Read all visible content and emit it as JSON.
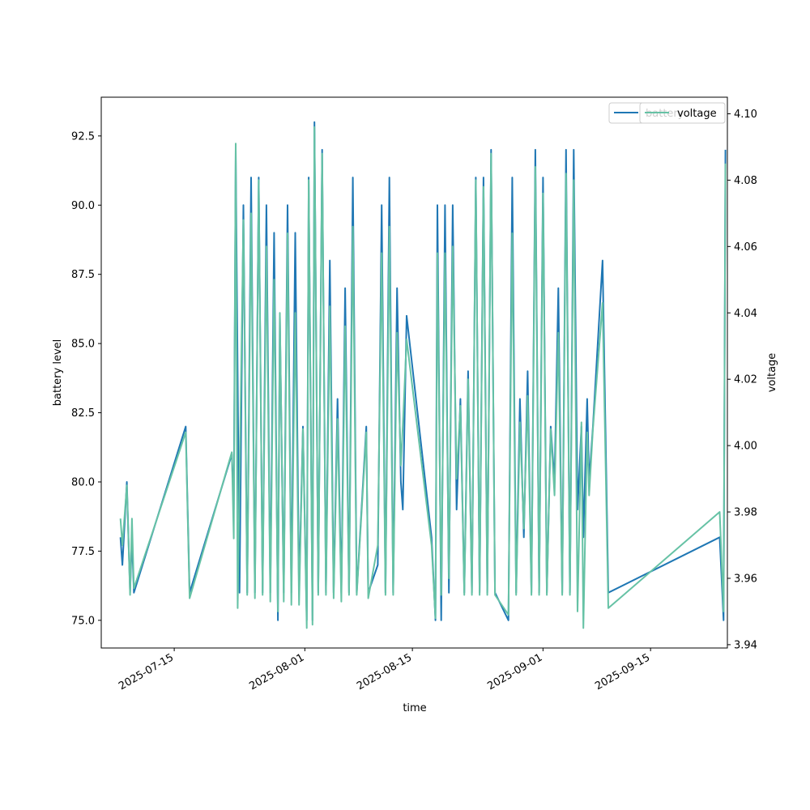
{
  "chart_data": {
    "type": "line",
    "xlabel": "time",
    "ylabel_left": "battery level",
    "ylabel_right": "voltage",
    "x_ticks": [
      "2025-07-15",
      "2025-08-01",
      "2025-08-15",
      "2025-09-01",
      "2025-09-15"
    ],
    "y_left_ticks": [
      "75.0",
      "77.5",
      "80.0",
      "82.5",
      "85.0",
      "87.5",
      "90.0",
      "92.5"
    ],
    "y_right_ticks": [
      "3.94",
      "3.96",
      "3.98",
      "4.00",
      "4.02",
      "4.04",
      "4.06",
      "4.08",
      "4.10"
    ],
    "x_range": [
      "2025-07-05T12:00",
      "2025-09-25T00:00"
    ],
    "y_left_range": [
      74.0,
      93.9
    ],
    "y_right_range": [
      3.939,
      4.105
    ],
    "grid": false,
    "legend": {
      "placement": "top-right",
      "entries": [
        "battery",
        "voltage"
      ]
    },
    "series": [
      {
        "name": "battery",
        "axis": "left",
        "color": "#1f77b4",
        "points": [
          [
            "2025-07-08T00:00",
            78.0
          ],
          [
            "2025-07-08T06:00",
            77.0
          ],
          [
            "2025-07-08T20:00",
            80.0
          ],
          [
            "2025-07-09T06:00",
            76.0
          ],
          [
            "2025-07-09T12:00",
            78.0
          ],
          [
            "2025-07-09T18:00",
            76.0
          ],
          [
            "2025-07-16T12:00",
            82.0
          ],
          [
            "2025-07-17T00:00",
            76.0
          ],
          [
            "2025-07-22T12:00",
            81.0
          ],
          [
            "2025-07-22T18:00",
            79.0
          ],
          [
            "2025-07-23T00:00",
            92.0
          ],
          [
            "2025-07-23T12:00",
            76.0
          ],
          [
            "2025-07-24T00:00",
            90.0
          ],
          [
            "2025-07-24T12:00",
            76.0
          ],
          [
            "2025-07-25T00:00",
            91.0
          ],
          [
            "2025-07-25T12:00",
            76.0
          ],
          [
            "2025-07-26T00:00",
            91.0
          ],
          [
            "2025-07-26T12:00",
            76.0
          ],
          [
            "2025-07-27T00:00",
            90.0
          ],
          [
            "2025-07-27T12:00",
            76.0
          ],
          [
            "2025-07-28T00:00",
            89.0
          ],
          [
            "2025-07-28T12:00",
            75.0
          ],
          [
            "2025-07-28T18:00",
            86.0
          ],
          [
            "2025-07-29T06:00",
            76.0
          ],
          [
            "2025-07-29T18:00",
            90.0
          ],
          [
            "2025-07-30T06:00",
            76.0
          ],
          [
            "2025-07-30T18:00",
            89.0
          ],
          [
            "2025-07-31T06:00",
            76.0
          ],
          [
            "2025-07-31T18:00",
            82.0
          ],
          [
            "2025-08-01T06:00",
            75.0
          ],
          [
            "2025-08-01T12:00",
            91.0
          ],
          [
            "2025-08-02T00:00",
            75.0
          ],
          [
            "2025-08-02T06:00",
            93.0
          ],
          [
            "2025-08-02T18:00",
            76.0
          ],
          [
            "2025-08-03T06:00",
            92.0
          ],
          [
            "2025-08-03T18:00",
            76.0
          ],
          [
            "2025-08-04T06:00",
            88.0
          ],
          [
            "2025-08-04T18:00",
            76.0
          ],
          [
            "2025-08-05T06:00",
            83.0
          ],
          [
            "2025-08-05T18:00",
            76.0
          ],
          [
            "2025-08-06T06:00",
            87.0
          ],
          [
            "2025-08-06T18:00",
            76.0
          ],
          [
            "2025-08-07T06:00",
            91.0
          ],
          [
            "2025-08-07T18:00",
            76.0
          ],
          [
            "2025-08-09T00:00",
            82.0
          ],
          [
            "2025-08-09T06:00",
            76.0
          ],
          [
            "2025-08-10T12:00",
            77.0
          ],
          [
            "2025-08-11T00:00",
            90.0
          ],
          [
            "2025-08-11T12:00",
            76.0
          ],
          [
            "2025-08-12T00:00",
            91.0
          ],
          [
            "2025-08-12T12:00",
            76.0
          ],
          [
            "2025-08-13T00:00",
            87.0
          ],
          [
            "2025-08-13T12:00",
            80.0
          ],
          [
            "2025-08-13T18:00",
            79.0
          ],
          [
            "2025-08-14T06:00",
            86.0
          ],
          [
            "2025-08-17T12:00",
            78.0
          ],
          [
            "2025-08-18T00:00",
            75.0
          ],
          [
            "2025-08-18T06:00",
            90.0
          ],
          [
            "2025-08-18T18:00",
            75.0
          ],
          [
            "2025-08-19T06:00",
            90.0
          ],
          [
            "2025-08-19T18:00",
            76.0
          ],
          [
            "2025-08-20T06:00",
            90.0
          ],
          [
            "2025-08-20T18:00",
            79.0
          ],
          [
            "2025-08-21T06:00",
            83.0
          ],
          [
            "2025-08-21T18:00",
            76.0
          ],
          [
            "2025-08-22T06:00",
            84.0
          ],
          [
            "2025-08-22T18:00",
            76.0
          ],
          [
            "2025-08-23T06:00",
            91.0
          ],
          [
            "2025-08-23T18:00",
            76.0
          ],
          [
            "2025-08-24T06:00",
            91.0
          ],
          [
            "2025-08-24T18:00",
            76.0
          ],
          [
            "2025-08-25T06:00",
            92.0
          ],
          [
            "2025-08-25T18:00",
            76.0
          ],
          [
            "2025-08-27T12:00",
            75.0
          ],
          [
            "2025-08-28T00:00",
            91.0
          ],
          [
            "2025-08-28T12:00",
            76.0
          ],
          [
            "2025-08-29T00:00",
            83.0
          ],
          [
            "2025-08-29T12:00",
            78.0
          ],
          [
            "2025-08-30T00:00",
            84.0
          ],
          [
            "2025-08-30T12:00",
            76.0
          ],
          [
            "2025-08-31T00:00",
            92.0
          ],
          [
            "2025-08-31T12:00",
            76.0
          ],
          [
            "2025-09-01T00:00",
            91.0
          ],
          [
            "2025-09-01T12:00",
            76.0
          ],
          [
            "2025-09-02T00:00",
            82.0
          ],
          [
            "2025-09-02T12:00",
            80.0
          ],
          [
            "2025-09-03T00:00",
            87.0
          ],
          [
            "2025-09-03T12:00",
            76.0
          ],
          [
            "2025-09-04T00:00",
            92.0
          ],
          [
            "2025-09-04T12:00",
            76.0
          ],
          [
            "2025-09-05T00:00",
            92.0
          ],
          [
            "2025-09-05T12:00",
            79.0
          ],
          [
            "2025-09-06T00:00",
            82.0
          ],
          [
            "2025-09-06T06:00",
            78.0
          ],
          [
            "2025-09-06T18:00",
            83.0
          ],
          [
            "2025-09-07T00:00",
            80.0
          ],
          [
            "2025-09-07T12:00",
            82.0
          ],
          [
            "2025-09-08T18:00",
            88.0
          ],
          [
            "2025-09-09T12:00",
            76.0
          ],
          [
            "2025-09-24T00:00",
            78.0
          ],
          [
            "2025-09-24T12:00",
            75.0
          ],
          [
            "2025-09-24T18:00",
            92.0
          ]
        ]
      },
      {
        "name": "voltage",
        "axis": "right",
        "color": "#66c2a5",
        "points": [
          [
            "2025-07-08T00:00",
            3.978
          ],
          [
            "2025-07-08T06:00",
            3.97
          ],
          [
            "2025-07-08T20:00",
            3.988
          ],
          [
            "2025-07-09T06:00",
            3.955
          ],
          [
            "2025-07-09T12:00",
            3.978
          ],
          [
            "2025-07-09T18:00",
            3.957
          ],
          [
            "2025-07-16T12:00",
            4.004
          ],
          [
            "2025-07-17T00:00",
            3.954
          ],
          [
            "2025-07-22T12:00",
            3.998
          ],
          [
            "2025-07-22T18:00",
            3.972
          ],
          [
            "2025-07-23T00:00",
            4.091
          ],
          [
            "2025-07-23T06:00",
            3.951
          ],
          [
            "2025-07-24T00:00",
            4.068
          ],
          [
            "2025-07-24T12:00",
            3.955
          ],
          [
            "2025-07-25T00:00",
            4.07
          ],
          [
            "2025-07-25T12:00",
            3.954
          ],
          [
            "2025-07-26T00:00",
            4.08
          ],
          [
            "2025-07-26T12:00",
            3.955
          ],
          [
            "2025-07-27T00:00",
            4.06
          ],
          [
            "2025-07-27T12:00",
            3.953
          ],
          [
            "2025-07-28T00:00",
            4.05
          ],
          [
            "2025-07-28T12:00",
            3.95
          ],
          [
            "2025-07-28T18:00",
            4.04
          ],
          [
            "2025-07-29T06:00",
            3.953
          ],
          [
            "2025-07-29T18:00",
            4.064
          ],
          [
            "2025-07-30T06:00",
            3.952
          ],
          [
            "2025-07-30T18:00",
            4.04
          ],
          [
            "2025-07-31T06:00",
            3.952
          ],
          [
            "2025-07-31T18:00",
            4.005
          ],
          [
            "2025-08-01T06:00",
            3.945
          ],
          [
            "2025-08-01T12:00",
            4.08
          ],
          [
            "2025-08-02T00:00",
            3.946
          ],
          [
            "2025-08-02T06:00",
            4.096
          ],
          [
            "2025-08-02T18:00",
            3.955
          ],
          [
            "2025-08-03T06:00",
            4.088
          ],
          [
            "2025-08-03T18:00",
            3.955
          ],
          [
            "2025-08-04T06:00",
            4.042
          ],
          [
            "2025-08-04T18:00",
            3.954
          ],
          [
            "2025-08-05T06:00",
            4.008
          ],
          [
            "2025-08-05T18:00",
            3.953
          ],
          [
            "2025-08-06T06:00",
            4.036
          ],
          [
            "2025-08-06T18:00",
            3.955
          ],
          [
            "2025-08-07T06:00",
            4.066
          ],
          [
            "2025-08-07T18:00",
            3.955
          ],
          [
            "2025-08-09T00:00",
            4.004
          ],
          [
            "2025-08-09T06:00",
            3.954
          ],
          [
            "2025-08-10T12:00",
            3.97
          ],
          [
            "2025-08-11T00:00",
            4.058
          ],
          [
            "2025-08-11T12:00",
            3.955
          ],
          [
            "2025-08-12T00:00",
            4.066
          ],
          [
            "2025-08-12T12:00",
            3.955
          ],
          [
            "2025-08-13T00:00",
            4.034
          ],
          [
            "2025-08-13T12:00",
            3.994
          ],
          [
            "2025-08-13T18:00",
            4.006
          ],
          [
            "2025-08-14T06:00",
            4.032
          ],
          [
            "2025-08-17T12:00",
            3.97
          ],
          [
            "2025-08-18T00:00",
            3.948
          ],
          [
            "2025-08-18T06:00",
            4.058
          ],
          [
            "2025-08-18T18:00",
            3.955
          ],
          [
            "2025-08-19T06:00",
            4.058
          ],
          [
            "2025-08-19T18:00",
            3.96
          ],
          [
            "2025-08-20T06:00",
            4.06
          ],
          [
            "2025-08-20T18:00",
            3.99
          ],
          [
            "2025-08-21T06:00",
            4.012
          ],
          [
            "2025-08-21T18:00",
            3.955
          ],
          [
            "2025-08-22T06:00",
            4.02
          ],
          [
            "2025-08-22T18:00",
            3.955
          ],
          [
            "2025-08-23T06:00",
            4.08
          ],
          [
            "2025-08-23T18:00",
            3.955
          ],
          [
            "2025-08-24T06:00",
            4.078
          ],
          [
            "2025-08-24T18:00",
            3.955
          ],
          [
            "2025-08-25T06:00",
            4.088
          ],
          [
            "2025-08-25T18:00",
            3.955
          ],
          [
            "2025-08-27T12:00",
            3.949
          ],
          [
            "2025-08-28T00:00",
            4.064
          ],
          [
            "2025-08-28T12:00",
            3.955
          ],
          [
            "2025-08-29T00:00",
            4.007
          ],
          [
            "2025-08-29T12:00",
            3.975
          ],
          [
            "2025-08-30T00:00",
            4.015
          ],
          [
            "2025-08-30T12:00",
            3.955
          ],
          [
            "2025-08-31T00:00",
            4.084
          ],
          [
            "2025-08-31T12:00",
            3.955
          ],
          [
            "2025-09-01T00:00",
            4.076
          ],
          [
            "2025-09-01T12:00",
            3.955
          ],
          [
            "2025-09-02T00:00",
            4.005
          ],
          [
            "2025-09-02T12:00",
            3.985
          ],
          [
            "2025-09-03T00:00",
            4.034
          ],
          [
            "2025-09-03T12:00",
            3.955
          ],
          [
            "2025-09-04T00:00",
            4.082
          ],
          [
            "2025-09-04T12:00",
            3.955
          ],
          [
            "2025-09-05T00:00",
            4.08
          ],
          [
            "2025-09-05T12:00",
            3.95
          ],
          [
            "2025-09-06T00:00",
            4.007
          ],
          [
            "2025-09-06T06:00",
            3.945
          ],
          [
            "2025-09-06T18:00",
            4.004
          ],
          [
            "2025-09-07T00:00",
            3.985
          ],
          [
            "2025-09-07T12:00",
            4.005
          ],
          [
            "2025-09-08T18:00",
            4.043
          ],
          [
            "2025-09-09T12:00",
            3.951
          ],
          [
            "2025-09-24T00:00",
            3.98
          ],
          [
            "2025-09-24T12:00",
            3.95
          ],
          [
            "2025-09-24T18:00",
            4.085
          ]
        ]
      }
    ]
  }
}
